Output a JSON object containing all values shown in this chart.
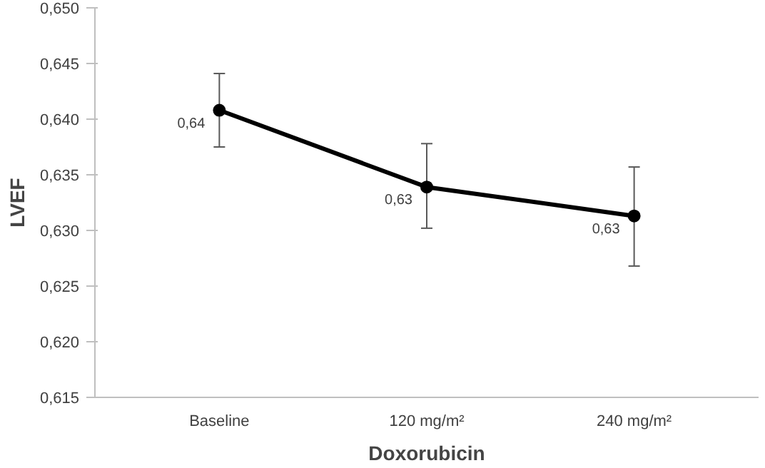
{
  "chart_data": {
    "type": "line",
    "xlabel": "Doxorubicin",
    "ylabel": "LVEF",
    "categories": [
      "Baseline",
      "120 mg/m²",
      "240 mg/m²"
    ],
    "values": [
      0.6408,
      0.6339,
      0.6313
    ],
    "errors": [
      [
        0.6375,
        0.6441
      ],
      [
        0.6302,
        0.6378
      ],
      [
        0.6268,
        0.6357
      ]
    ],
    "value_labels": [
      "0,64",
      "0,63",
      "0,63"
    ],
    "color": "#000000",
    "marker": "circle",
    "line_style": "solid",
    "grid": false,
    "ylim": [
      0.615,
      0.65
    ],
    "yticks": [
      {
        "value": 0.615,
        "label": "0,615"
      },
      {
        "value": 0.62,
        "label": "0,620"
      },
      {
        "value": 0.625,
        "label": "0,625"
      },
      {
        "value": 0.63,
        "label": "0,630"
      },
      {
        "value": 0.635,
        "label": "0,635"
      },
      {
        "value": 0.64,
        "label": "0,640"
      },
      {
        "value": 0.645,
        "label": "0,645"
      },
      {
        "value": 0.65,
        "label": "0,650"
      }
    ]
  }
}
